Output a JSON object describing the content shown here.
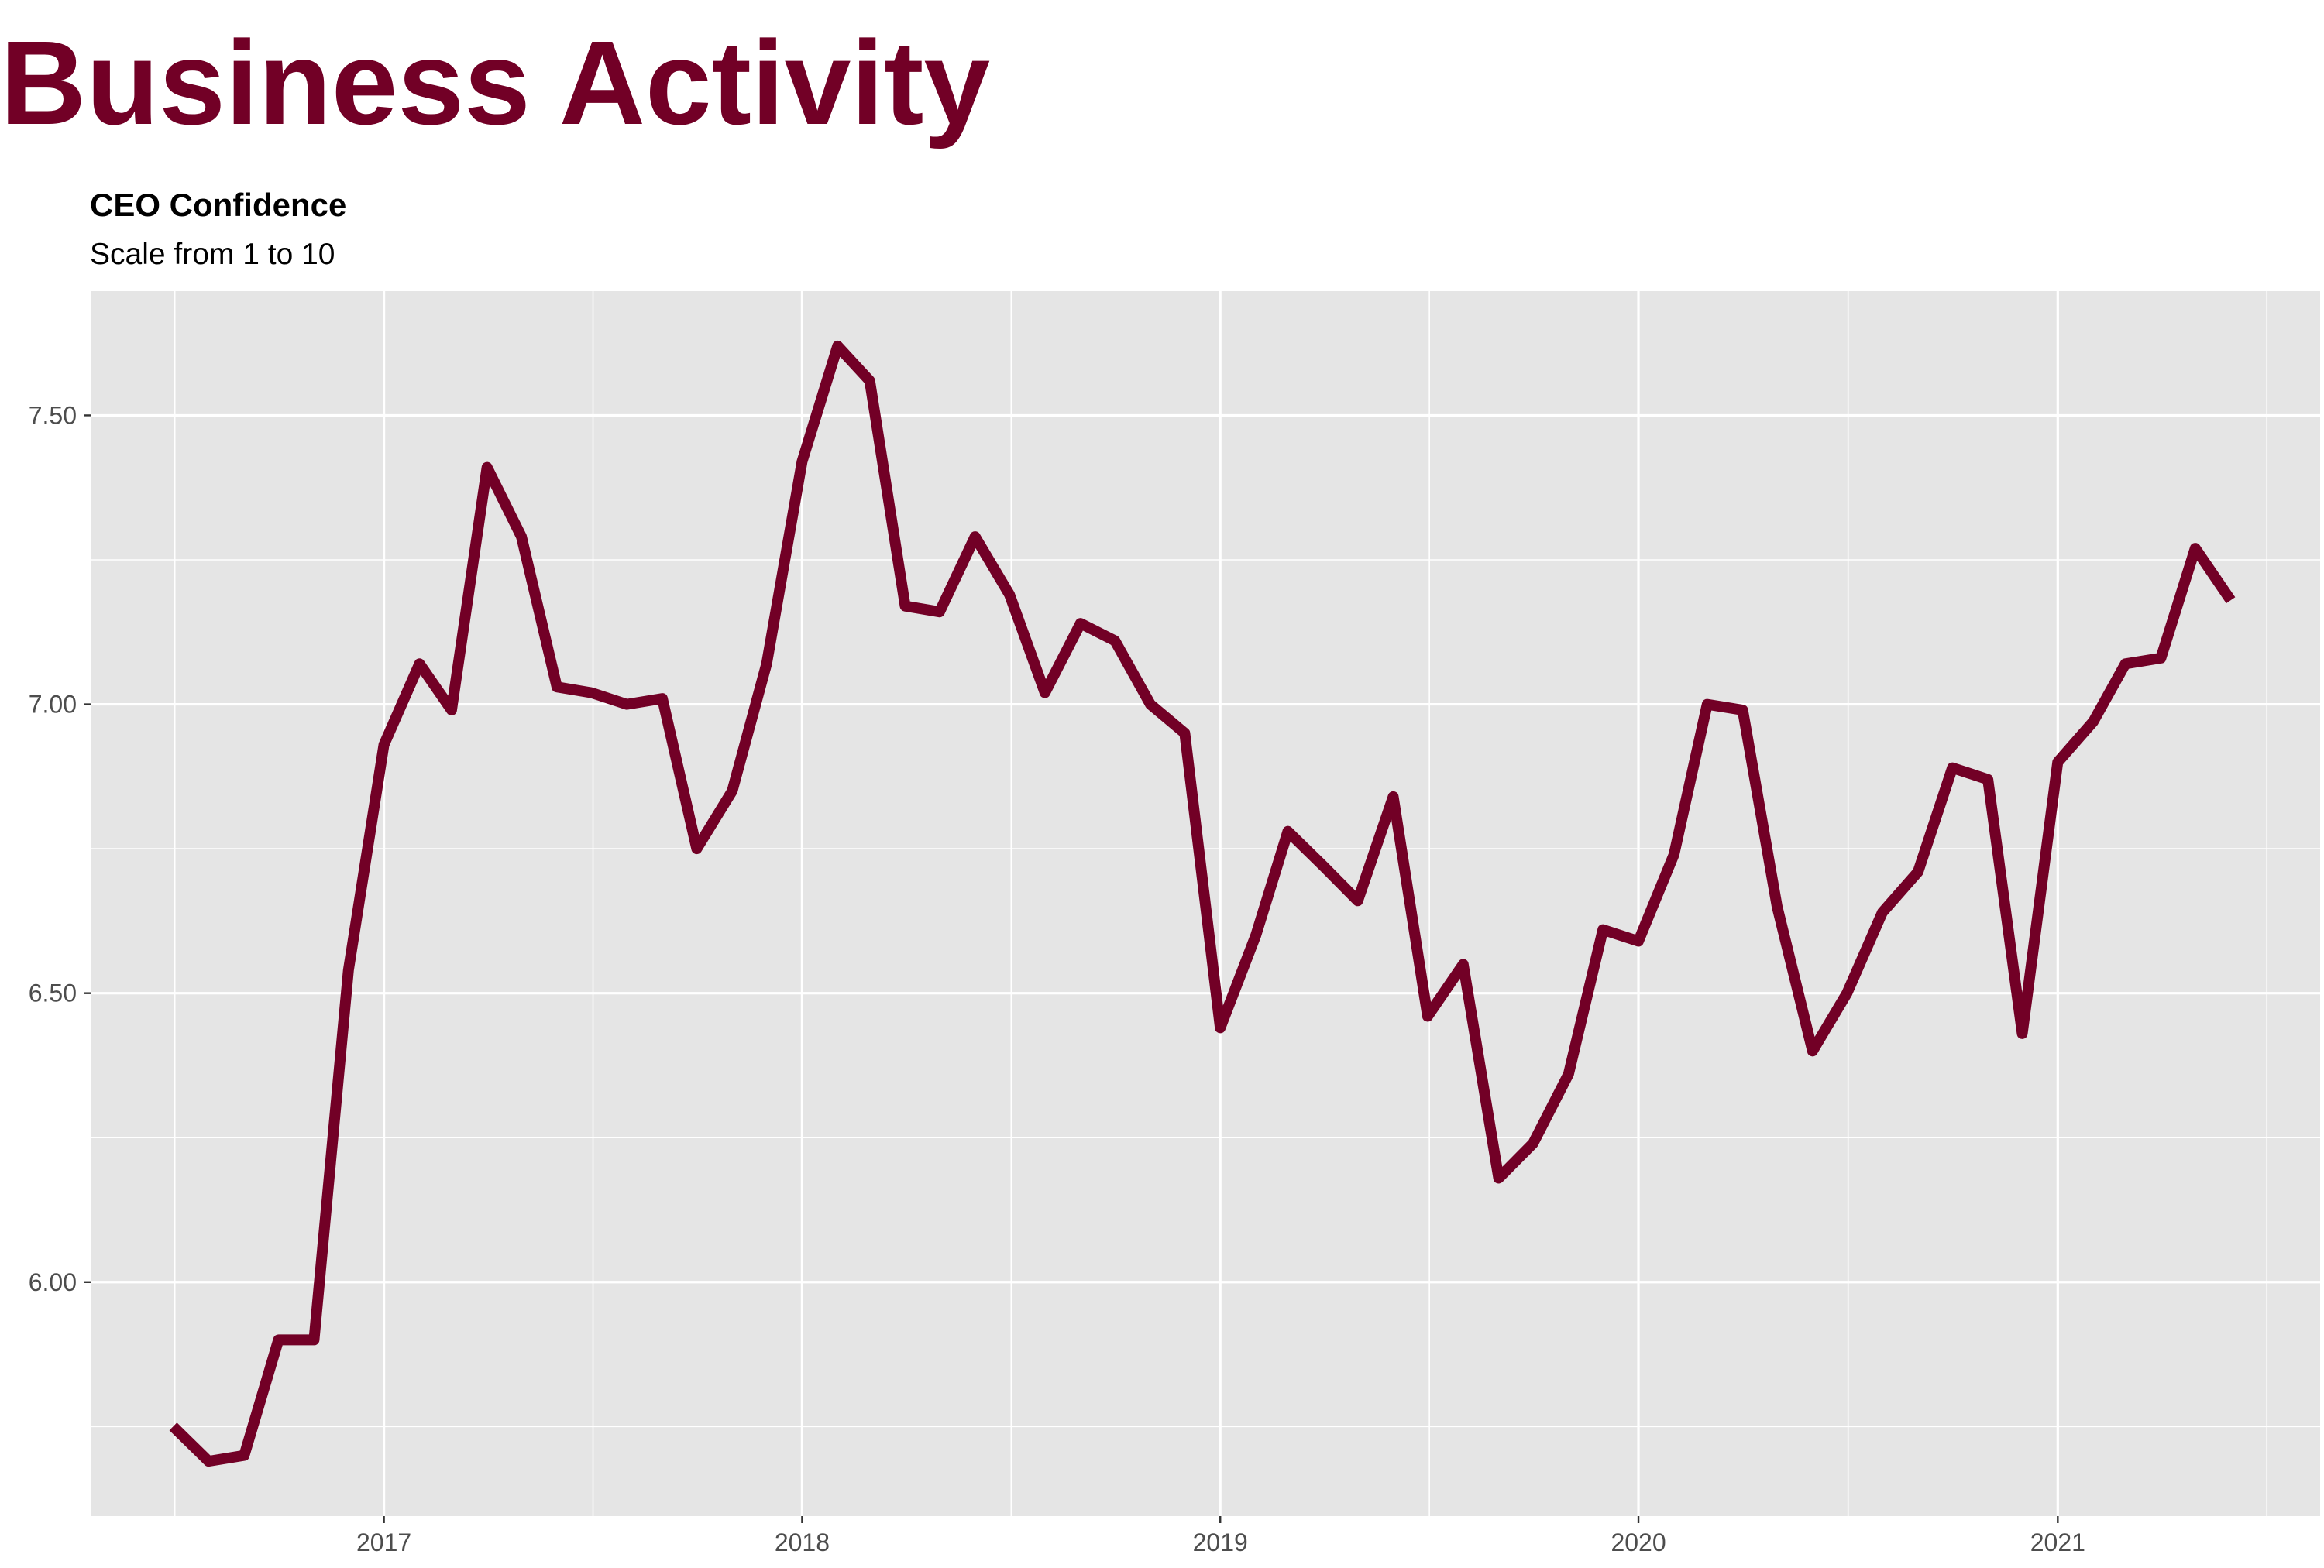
{
  "page": {
    "title": "Business Activity"
  },
  "chart_data": {
    "type": "line",
    "title": "CEO Confidence",
    "subtitle": "Scale from 1 to 10",
    "xlabel": "",
    "ylabel": "",
    "xlim": [
      "2016-04-20",
      "2021-08-18"
    ],
    "ylim": [
      5.595,
      7.715
    ],
    "x_ticks": [
      "2017-01-01",
      "2018-01-01",
      "2019-01-01",
      "2020-01-01",
      "2021-01-01"
    ],
    "x_tick_labels": [
      "2017",
      "2018",
      "2019",
      "2020",
      "2021"
    ],
    "y_ticks": [
      6.0,
      6.5,
      7.0,
      7.5
    ],
    "y_tick_labels": [
      "6.00",
      "6.50",
      "7.00",
      "7.50"
    ],
    "grid": true,
    "legend": "none",
    "colors": {
      "line": "#720026",
      "panel": "#e5e5e5",
      "grid": "#ffffff",
      "title": "#720026"
    },
    "series": [
      {
        "x": [
          "2016-07-01",
          "2016-08-01",
          "2016-09-01",
          "2016-10-01",
          "2016-11-01",
          "2016-12-01",
          "2017-01-01",
          "2017-02-01",
          "2017-03-01",
          "2017-04-01",
          "2017-05-01",
          "2017-06-01",
          "2017-07-01",
          "2017-08-01",
          "2017-09-01",
          "2017-10-01",
          "2017-11-01",
          "2017-12-01",
          "2018-01-01",
          "2018-02-01",
          "2018-03-01",
          "2018-04-01",
          "2018-05-01",
          "2018-06-01",
          "2018-07-01",
          "2018-08-01",
          "2018-09-01",
          "2018-10-01",
          "2018-11-01",
          "2018-12-01",
          "2019-01-01",
          "2019-02-01",
          "2019-03-01",
          "2019-04-01",
          "2019-05-01",
          "2019-06-01",
          "2019-07-01",
          "2019-08-01",
          "2019-09-01",
          "2019-10-01",
          "2019-11-01",
          "2019-12-01",
          "2020-01-01",
          "2020-02-01",
          "2020-03-01",
          "2020-04-01",
          "2020-05-01",
          "2020-06-01",
          "2020-07-01",
          "2020-08-01",
          "2020-09-01",
          "2020-10-01",
          "2020-11-01",
          "2020-12-01",
          "2021-01-01",
          "2021-02-01",
          "2021-03-01",
          "2021-04-01",
          "2021-05-01",
          "2021-06-01"
        ],
        "y": [
          5.75,
          5.69,
          5.7,
          5.9,
          5.9,
          6.54,
          6.93,
          7.07,
          6.99,
          7.41,
          7.29,
          7.03,
          7.02,
          7.0,
          7.01,
          6.75,
          6.85,
          7.07,
          7.42,
          7.62,
          7.56,
          7.17,
          7.16,
          7.29,
          7.19,
          7.02,
          7.14,
          7.11,
          7.0,
          6.95,
          6.44,
          6.6,
          6.78,
          6.72,
          6.66,
          6.84,
          6.46,
          6.55,
          6.18,
          6.24,
          6.36,
          6.61,
          6.59,
          6.74,
          7.0,
          6.99,
          6.65,
          6.4,
          6.5,
          6.64,
          6.71,
          6.89,
          6.87,
          6.43,
          6.9,
          6.97,
          7.07,
          7.08,
          7.27,
          7.18
        ]
      }
    ]
  }
}
